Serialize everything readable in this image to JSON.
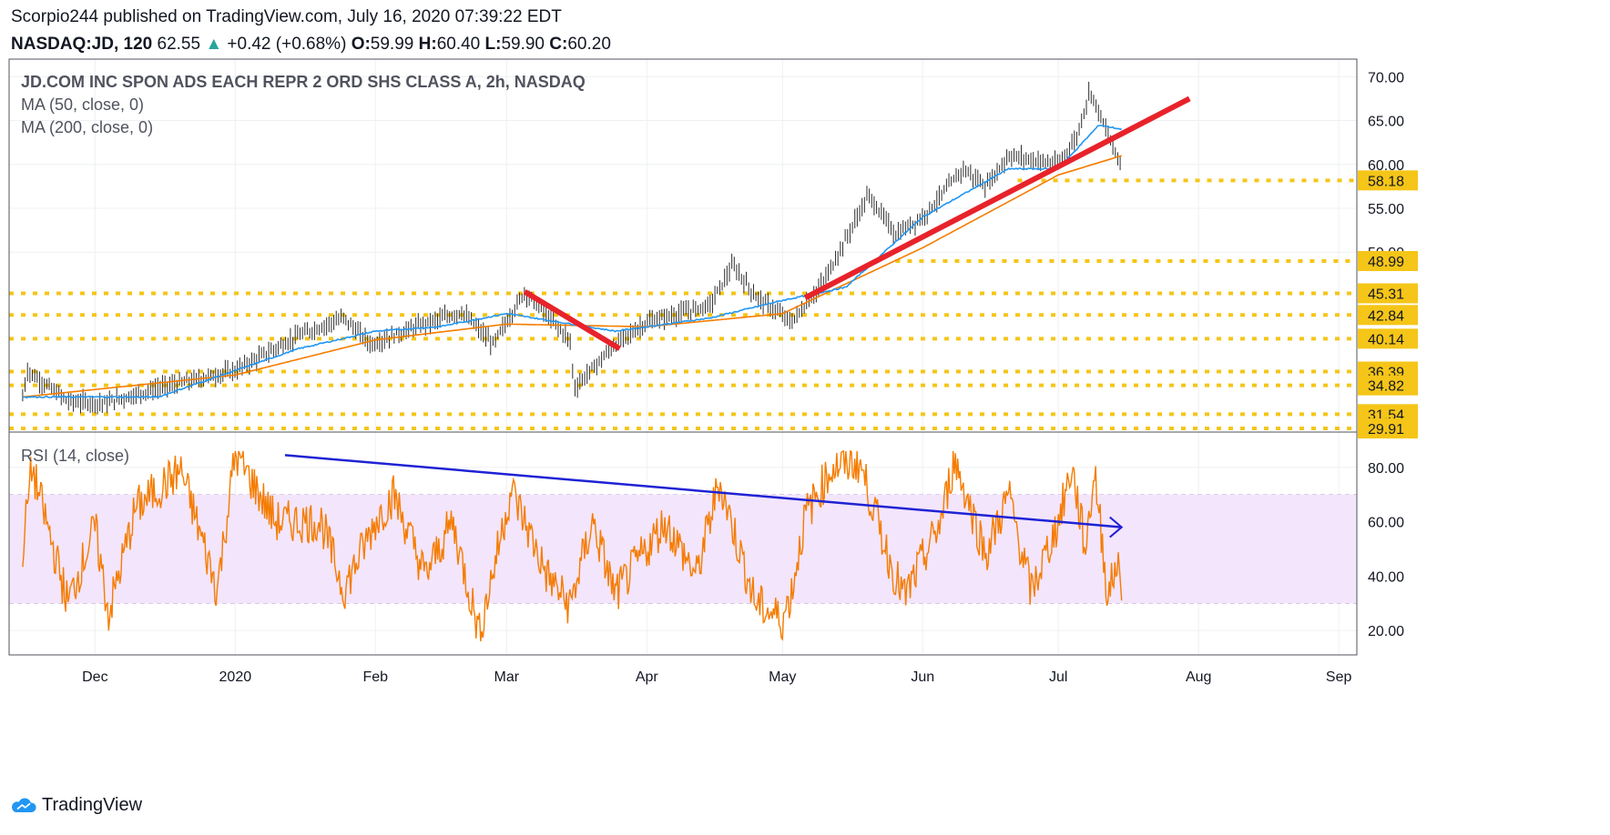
{
  "header": {
    "published_by": "Scorpio244 published on TradingView.com, July 16, 2020 07:39:22 EDT",
    "symbol": "NASDAQ:JD, 120",
    "last": "62.55",
    "arrow": "▲",
    "change": "+0.42 (+0.68%)",
    "o_label": "O:",
    "o": "59.99",
    "h_label": "H:",
    "h": "60.40",
    "l_label": "L:",
    "l": "59.90",
    "c_label": "C:",
    "c": "60.20"
  },
  "legend": {
    "title": "JD.COM INC SPON ADS EACH REPR 2 ORD SHS CLASS A, 2h, NASDAQ",
    "ma50": "MA (50, close, 0)",
    "ma200": "MA (200, close, 0)",
    "rsi": "RSI (14, close)"
  },
  "footer": {
    "brand": "TradingView"
  },
  "colors": {
    "price": "#2e2e2e",
    "ma50": "#2196f3",
    "ma200": "#f57c00",
    "rsi": "#f57c00",
    "rsi_band": "#f3e5fc",
    "support": "#f5c518",
    "trend_red": "#e8222a",
    "trend_blue": "#1f22d4"
  },
  "chart_data": [
    {
      "type": "line",
      "panel": "price",
      "x_ticks": [
        "Dec",
        "2020",
        "Feb",
        "Mar",
        "Apr",
        "May",
        "Jun",
        "Jul",
        "Aug",
        "Sep"
      ],
      "y_ticks": [
        "70.00",
        "65.00",
        "60.00",
        "55.00",
        "50.00"
      ],
      "ylim": [
        29.5,
        72.0
      ],
      "support_levels": [
        "58.18",
        "48.99",
        "45.31",
        "42.84",
        "40.14",
        "36.39",
        "34.82",
        "31.54",
        "29.91"
      ],
      "series": [
        {
          "name": "MA (50, close, 0)"
        },
        {
          "name": "MA (200, close, 0)"
        }
      ],
      "price_keypoints": [
        [
          "2019-11-15",
          33.5
        ],
        [
          "2019-11-16",
          36.5
        ],
        [
          "2019-11-25",
          33.0
        ],
        [
          "2019-12-03",
          32.8
        ],
        [
          "2019-12-15",
          34.5
        ],
        [
          "2020-01-01",
          36.5
        ],
        [
          "2020-01-15",
          40.5
        ],
        [
          "2020-01-25",
          42.5
        ],
        [
          "2020-01-31",
          39.5
        ],
        [
          "2020-02-10",
          41.5
        ],
        [
          "2020-02-20",
          43.2
        ],
        [
          "2020-02-27",
          39.5
        ],
        [
          "2020-03-05",
          45.5
        ],
        [
          "2020-03-15",
          40.0
        ],
        [
          "2020-03-16",
          34.5
        ],
        [
          "2020-03-25",
          39.5
        ],
        [
          "2020-04-01",
          42.0
        ],
        [
          "2020-04-15",
          44.0
        ],
        [
          "2020-04-20",
          48.5
        ],
        [
          "2020-04-25",
          45.0
        ],
        [
          "2020-05-03",
          42.0
        ],
        [
          "2020-05-10",
          46.5
        ],
        [
          "2020-05-20",
          56.5
        ],
        [
          "2020-05-26",
          52.0
        ],
        [
          "2020-06-01",
          54.0
        ],
        [
          "2020-06-10",
          59.5
        ],
        [
          "2020-06-15",
          57.5
        ],
        [
          "2020-06-20",
          61.0
        ],
        [
          "2020-07-01",
          60.0
        ],
        [
          "2020-07-05",
          63.0
        ],
        [
          "2020-07-08",
          68.5
        ],
        [
          "2020-07-13",
          62.0
        ],
        [
          "2020-07-15",
          60.0
        ]
      ],
      "ma50_keypoints": [
        [
          "2019-11-15",
          33.5
        ],
        [
          "2019-12-15",
          33.5
        ],
        [
          "2020-01-15",
          39.0
        ],
        [
          "2020-02-01",
          41.0
        ],
        [
          "2020-02-15",
          41.5
        ],
        [
          "2020-03-01",
          43.0
        ],
        [
          "2020-03-25",
          41.0
        ],
        [
          "2020-04-15",
          42.5
        ],
        [
          "2020-05-01",
          44.5
        ],
        [
          "2020-05-15",
          46.0
        ],
        [
          "2020-06-01",
          54.0
        ],
        [
          "2020-06-20",
          59.5
        ],
        [
          "2020-07-01",
          59.5
        ],
        [
          "2020-07-10",
          64.5
        ],
        [
          "2020-07-15",
          64.0
        ]
      ],
      "ma200_keypoints": [
        [
          "2019-11-15",
          33.5
        ],
        [
          "2020-01-01",
          36.0
        ],
        [
          "2020-02-01",
          40.0
        ],
        [
          "2020-03-01",
          41.8
        ],
        [
          "2020-04-01",
          41.5
        ],
        [
          "2020-05-01",
          43.0
        ],
        [
          "2020-06-01",
          50.5
        ],
        [
          "2020-07-01",
          58.8
        ],
        [
          "2020-07-15",
          61.0
        ]
      ],
      "annotations": [
        {
          "kind": "trendline",
          "color": "red",
          "from": [
            "2020-03-05",
            45.5
          ],
          "to": [
            "2020-03-26",
            39.0
          ]
        },
        {
          "kind": "trendline",
          "color": "red",
          "from": [
            "2020-05-06",
            44.8
          ],
          "to": [
            "2020-07-30",
            67.5
          ]
        }
      ]
    },
    {
      "type": "line",
      "panel": "rsi",
      "y_ticks": [
        "80.00",
        "60.00",
        "40.00",
        "20.00"
      ],
      "ylim": [
        11,
        93
      ],
      "band": [
        30,
        70
      ],
      "rsi_keypoints": [
        [
          "2019-11-15",
          50
        ],
        [
          "2019-11-17",
          80
        ],
        [
          "2019-11-25",
          30
        ],
        [
          "2019-12-01",
          58
        ],
        [
          "2019-12-04",
          26
        ],
        [
          "2019-12-10",
          65
        ],
        [
          "2019-12-20",
          79
        ],
        [
          "2019-12-28",
          35
        ],
        [
          "2020-01-01",
          85
        ],
        [
          "2020-01-10",
          60
        ],
        [
          "2020-01-20",
          60
        ],
        [
          "2020-01-25",
          35
        ],
        [
          "2020-02-01",
          60
        ],
        [
          "2020-02-05",
          70
        ],
        [
          "2020-02-12",
          40
        ],
        [
          "2020-02-18",
          60
        ],
        [
          "2020-02-24",
          19
        ],
        [
          "2020-03-02",
          72
        ],
        [
          "2020-03-10",
          40
        ],
        [
          "2020-03-15",
          29
        ],
        [
          "2020-03-20",
          60
        ],
        [
          "2020-03-25",
          33
        ],
        [
          "2020-04-05",
          60
        ],
        [
          "2020-04-12",
          40
        ],
        [
          "2020-04-17",
          75
        ],
        [
          "2020-04-20",
          58
        ],
        [
          "2020-04-25",
          30
        ],
        [
          "2020-05-01",
          24
        ],
        [
          "2020-05-03",
          34
        ],
        [
          "2020-05-06",
          62
        ],
        [
          "2020-05-12",
          80
        ],
        [
          "2020-05-18",
          82
        ],
        [
          "2020-05-25",
          44
        ],
        [
          "2020-05-28",
          32
        ],
        [
          "2020-06-05",
          60
        ],
        [
          "2020-06-08",
          83
        ],
        [
          "2020-06-15",
          48
        ],
        [
          "2020-06-20",
          70
        ],
        [
          "2020-06-25",
          34
        ],
        [
          "2020-07-01",
          60
        ],
        [
          "2020-07-04",
          80
        ],
        [
          "2020-07-07",
          50
        ],
        [
          "2020-07-09",
          79
        ],
        [
          "2020-07-12",
          32
        ],
        [
          "2020-07-14",
          46
        ],
        [
          "2020-07-15",
          31
        ]
      ],
      "annotations": [
        {
          "kind": "trendline",
          "color": "blue",
          "arrow": true,
          "from": [
            "2020-01-12",
            84.5
          ],
          "to": [
            "2020-07-15",
            58.0
          ]
        }
      ]
    }
  ]
}
